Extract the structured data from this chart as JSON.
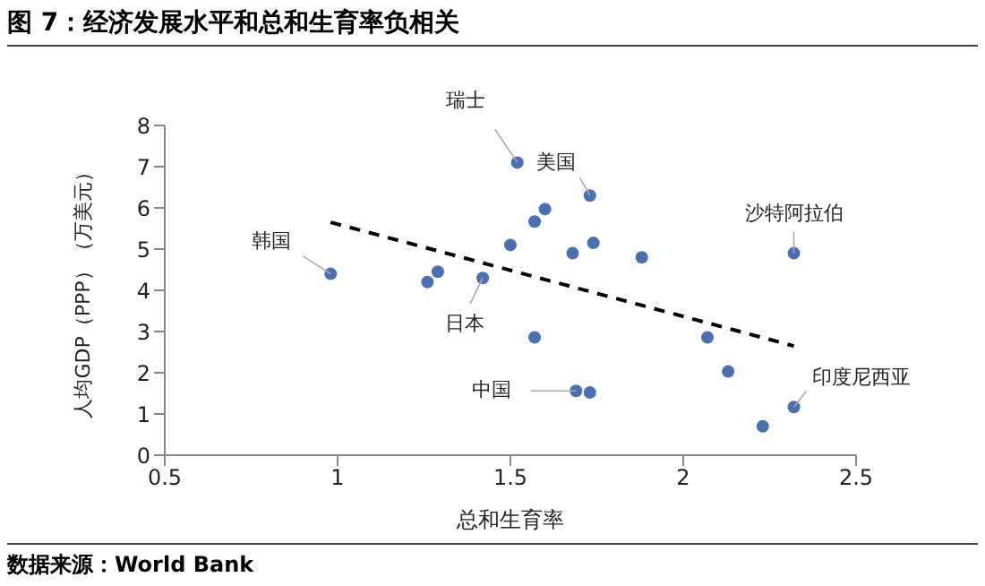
{
  "chart_data": {
    "type": "scatter",
    "title": "图 7：经济发展水平和总和生育率负相关",
    "xlabel": "总和生育率",
    "ylabel": "人均GDP（PPP）（万美元）",
    "xlim": [
      0.5,
      2.5
    ],
    "xticks": [
      0.5,
      1,
      1.5,
      2,
      2.5
    ],
    "ylim": [
      0,
      8
    ],
    "yticks": [
      0,
      1,
      2,
      3,
      4,
      5,
      6,
      7,
      8
    ],
    "series": [
      {
        "color": "#4a6fb5",
        "marker": "circle",
        "x": [
          0.98,
          1.26,
          1.29,
          1.42,
          1.5,
          1.52,
          1.57,
          1.6,
          1.57,
          1.68,
          1.74,
          1.73,
          1.88,
          2.32,
          2.07,
          2.13,
          1.69,
          1.73,
          2.32,
          2.23
        ],
        "values": [
          4.4,
          4.2,
          4.45,
          4.3,
          5.1,
          7.1,
          5.67,
          5.97,
          2.86,
          4.9,
          5.15,
          6.3,
          4.8,
          4.9,
          2.86,
          2.03,
          1.56,
          1.52,
          1.17,
          0.7
        ]
      },
      {
        "type": "line",
        "color": "#000000",
        "line_style": "dashed",
        "marker": "none",
        "x": [
          0.98,
          2.32
        ],
        "values": [
          5.65,
          2.65
        ]
      }
    ],
    "annotations": [
      {
        "text": "韩国",
        "x": 0.98,
        "y": 4.4
      },
      {
        "text": "日本",
        "x": 1.42,
        "y": 4.3
      },
      {
        "text": "瑞士",
        "x": 1.52,
        "y": 7.1
      },
      {
        "text": "美国",
        "x": 1.73,
        "y": 6.3
      },
      {
        "text": "沙特阿拉伯",
        "x": 2.32,
        "y": 4.9
      },
      {
        "text": "中国",
        "x": 1.69,
        "y": 1.56
      },
      {
        "text": "印度尼西亚",
        "x": 2.32,
        "y": 1.17
      },
      "数据来源：World Bank"
    ]
  }
}
